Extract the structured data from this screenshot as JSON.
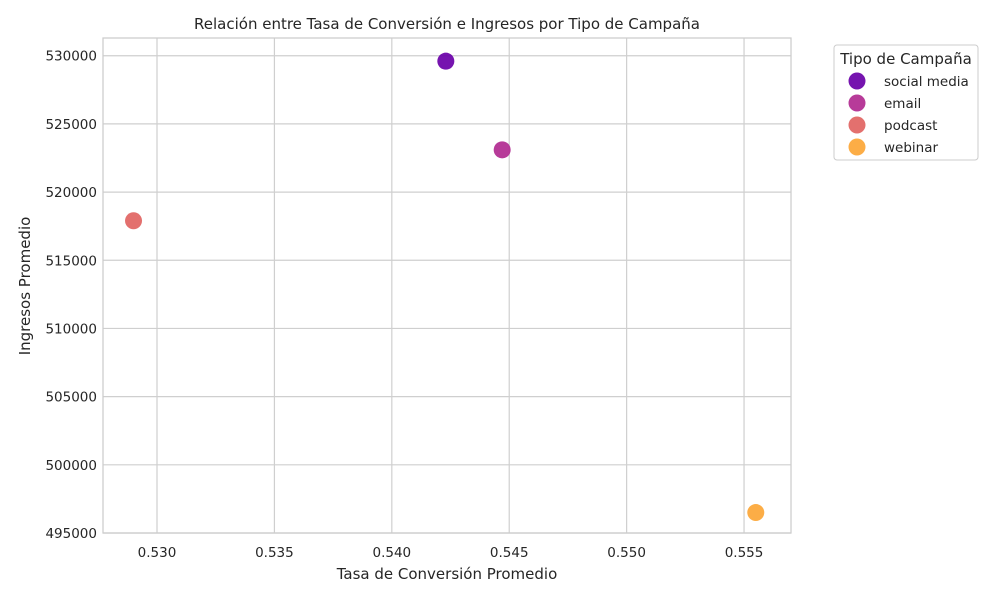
{
  "chart_data": {
    "type": "scatter",
    "title": "Relación entre Tasa de Conversión e Ingresos por Tipo de Campaña",
    "xlabel": "Tasa de Conversión Promedio",
    "ylabel": "Ingresos Promedio",
    "xlim": [
      0.5277,
      0.557
    ],
    "ylim": [
      495000,
      531300
    ],
    "x_ticks": [
      0.53,
      0.535,
      0.54,
      0.545,
      0.55,
      0.555
    ],
    "y_ticks": [
      495000,
      500000,
      505000,
      510000,
      515000,
      520000,
      525000,
      530000
    ],
    "grid": true,
    "legend": {
      "title": "Tipo de Campaña",
      "placement": "outside-top-right"
    },
    "series": [
      {
        "name": "social media",
        "color": "#6a00a8",
        "x": [
          0.5423
        ],
        "y": [
          529600
        ]
      },
      {
        "name": "email",
        "color": "#b12a90",
        "x": [
          0.5447
        ],
        "y": [
          523100
        ]
      },
      {
        "name": "podcast",
        "color": "#e16462",
        "x": [
          0.529
        ],
        "y": [
          517900
        ]
      },
      {
        "name": "webinar",
        "color": "#fca636",
        "x": [
          0.5555
        ],
        "y": [
          496500
        ]
      }
    ]
  }
}
